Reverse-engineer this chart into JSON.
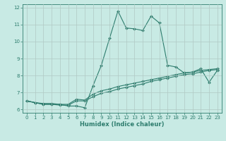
{
  "xlabel": "Humidex (Indice chaleur)",
  "background_color": "#c8eae4",
  "grid_color": "#b0c8c4",
  "line_color": "#2e7d6e",
  "xlim": [
    -0.5,
    23.5
  ],
  "ylim": [
    5.8,
    12.2
  ],
  "yticks": [
    6,
    7,
    8,
    9,
    10,
    11,
    12
  ],
  "xticks": [
    0,
    1,
    2,
    3,
    4,
    5,
    6,
    7,
    8,
    9,
    10,
    11,
    12,
    13,
    14,
    15,
    16,
    17,
    18,
    19,
    20,
    21,
    22,
    23
  ],
  "x": [
    0,
    1,
    2,
    3,
    4,
    5,
    6,
    7,
    8,
    9,
    10,
    11,
    12,
    13,
    14,
    15,
    16,
    17,
    18,
    19,
    20,
    21,
    22,
    23
  ],
  "line1": [
    6.5,
    6.4,
    6.3,
    6.3,
    6.3,
    6.2,
    6.2,
    6.1,
    7.4,
    8.6,
    10.2,
    11.8,
    10.8,
    10.75,
    10.65,
    11.5,
    11.1,
    8.6,
    8.5,
    8.15,
    8.2,
    8.4,
    7.6,
    8.3
  ],
  "line2": [
    6.5,
    6.4,
    6.35,
    6.35,
    6.3,
    6.3,
    6.6,
    6.55,
    6.9,
    7.1,
    7.2,
    7.35,
    7.45,
    7.55,
    7.65,
    7.75,
    7.85,
    7.95,
    8.05,
    8.15,
    8.2,
    8.3,
    8.35,
    8.4
  ],
  "line3": [
    6.5,
    6.4,
    6.3,
    6.3,
    6.25,
    6.25,
    6.5,
    6.5,
    6.75,
    6.95,
    7.05,
    7.2,
    7.3,
    7.4,
    7.5,
    7.65,
    7.75,
    7.85,
    7.95,
    8.05,
    8.1,
    8.2,
    8.3,
    8.35
  ]
}
